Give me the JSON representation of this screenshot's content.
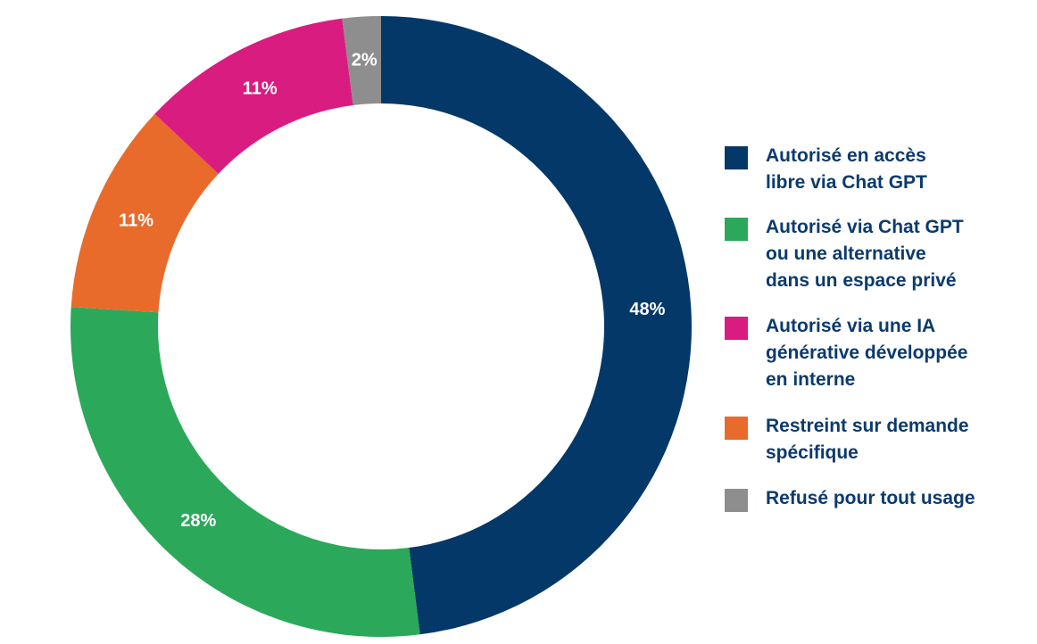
{
  "chart_data": {
    "type": "pie",
    "variant": "donut",
    "categories": [
      "Autorisé en accès libre via Chat GPT",
      "Autorisé via Chat GPT ou une alternative dans un espace privé",
      "Autorisé via une IA générative développée en interne",
      "Restreint sur demande spécifique",
      "Refusé pour tout usage"
    ],
    "values": [
      48,
      28,
      11,
      11,
      2
    ],
    "value_labels": [
      "48%",
      "28%",
      "11%",
      "11%",
      "2%"
    ],
    "colors": [
      "#033869",
      "#2ba85a",
      "#d91c80",
      "#e96b2c",
      "#8e8e8e"
    ],
    "legend_placement": "right"
  },
  "legend": {
    "items": [
      {
        "label": "Autorisé en accès\nlibre via Chat GPT",
        "color": "#033869"
      },
      {
        "label": "Autorisé via Chat GPT\nou une alternative\ndans un espace privé",
        "color": "#2ba85a"
      },
      {
        "label": "Autorisé via une IA\ngénérative développée\nen interne",
        "color": "#d91c80"
      },
      {
        "label": "Restreint sur demande\nspécifique",
        "color": "#e96b2c"
      },
      {
        "label": "Refusé pour tout usage",
        "color": "#8e8e8e"
      }
    ]
  }
}
